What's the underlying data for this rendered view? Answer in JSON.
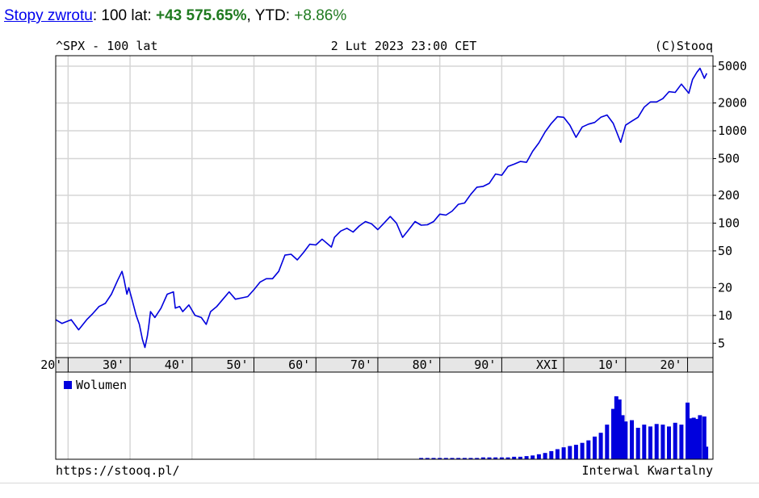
{
  "headline": {
    "link_label": "Stopy zwrotu",
    "after_link": ": 100 lat: ",
    "gain": "+43 575.65%",
    "ytd_label": ", YTD: ",
    "ytd_value": "+8.86%"
  },
  "chart": {
    "title_left": "^SPX - 100 lat",
    "title_center": "2 Lut 2023 23:00 CET",
    "title_right": "(C)Stooq",
    "footer_left": "https://stooq.pl/",
    "footer_right": "Interwal Kwartalny",
    "line_color": "#0000dd",
    "volume_color": "#0000dd",
    "grid_color": "#d6d6d6"
  },
  "chart_data": [
    {
      "type": "line",
      "x_scale": "time (years)",
      "y_scale": "log",
      "ylim": [
        3.5,
        6500
      ],
      "xlim": [
        1918.0,
        2024.1
      ],
      "x_tick_labels": [
        "20'",
        "30'",
        "40'",
        "50'",
        "60'",
        "70'",
        "80'",
        "90'",
        "XXI",
        "10'",
        "20'"
      ],
      "x_tick_years": [
        1920,
        1930,
        1940,
        1950,
        1960,
        1970,
        1980,
        1990,
        2000,
        2010,
        2020
      ],
      "y_tick_labels": [
        "5000",
        "2000",
        "1000",
        "500",
        "200",
        "100",
        "50",
        "20",
        "10",
        "5"
      ],
      "y_tick_values": [
        5000,
        2000,
        1000,
        500,
        200,
        100,
        50,
        20,
        10,
        5
      ],
      "grid": true,
      "series": [
        {
          "x": [
            1918.0,
            1919.0,
            1920.5,
            1921.7,
            1923.0,
            1924.0,
            1925.0,
            1926.0,
            1927.0,
            1928.0,
            1928.7,
            1929.0,
            1929.5,
            1929.8,
            1930.3,
            1931.0,
            1931.5,
            1932.0,
            1932.4,
            1932.8,
            1933.0,
            1933.3,
            1934.0,
            1935.0,
            1936.0,
            1937.0,
            1937.3,
            1938.0,
            1938.5,
            1939.5,
            1940.5,
            1941.5,
            1942.3,
            1943.0,
            1944.0,
            1945.0,
            1946.0,
            1947.0,
            1948.0,
            1949.0,
            1950.0,
            1951.0,
            1952.0,
            1953.0,
            1954.0,
            1955.0,
            1956.0,
            1957.0,
            1958.0,
            1959.0,
            1960.0,
            1961.0,
            1962.5,
            1963.0,
            1964.0,
            1965.0,
            1966.0,
            1967.0,
            1968.0,
            1969.0,
            1970.0,
            1971.0,
            1972.0,
            1973.0,
            1974.0,
            1975.0,
            1976.0,
            1977.0,
            1978.0,
            1979.0,
            1980.0,
            1981.0,
            1982.0,
            1983.0,
            1984.0,
            1985.0,
            1986.0,
            1987.0,
            1988.0,
            1989.0,
            1990.0,
            1991.0,
            1992.0,
            1993.0,
            1994.0,
            1995.0,
            1996.0,
            1997.0,
            1998.0,
            1999.0,
            2000.0,
            2001.0,
            2002.0,
            2003.0,
            2004.0,
            2005.0,
            2006.0,
            2007.0,
            2008.0,
            2008.8,
            2009.2,
            2010.0,
            2011.0,
            2012.0,
            2013.0,
            2014.0,
            2015.0,
            2016.0,
            2017.0,
            2018.0,
            2019.0,
            2020.2,
            2020.8,
            2021.5,
            2022.0,
            2022.7,
            2023.1
          ],
          "y": [
            9.0,
            8.2,
            9.0,
            7.0,
            9.0,
            10.5,
            12.5,
            13.5,
            17.0,
            24.0,
            30.0,
            25.0,
            17.0,
            20.0,
            15.0,
            10.0,
            8.0,
            5.5,
            4.5,
            6.0,
            7.5,
            11.0,
            9.5,
            12.0,
            17.0,
            18.0,
            12.0,
            12.5,
            11.0,
            13.0,
            10.0,
            9.5,
            8.0,
            11.0,
            12.5,
            15.0,
            18.0,
            15.0,
            15.5,
            16.0,
            19.0,
            23.0,
            25.0,
            25.0,
            30.0,
            45.0,
            46.0,
            40.0,
            48.0,
            59.0,
            58.0,
            67.0,
            55.0,
            70.0,
            82.0,
            88.0,
            80.0,
            93.0,
            104.0,
            98.0,
            85.0,
            100.0,
            118.0,
            100.0,
            70.0,
            85.0,
            104.0,
            95.0,
            96.0,
            104.0,
            125.0,
            122.0,
            135.0,
            160.0,
            165.0,
            205.0,
            245.0,
            250.0,
            270.0,
            340.0,
            330.0,
            410.0,
            435.0,
            465.0,
            455.0,
            600.0,
            740.0,
            970.0,
            1200.0,
            1420.0,
            1400.0,
            1150.0,
            850.0,
            1100.0,
            1180.0,
            1230.0,
            1400.0,
            1480.0,
            1200.0,
            880.0,
            750.0,
            1150.0,
            1270.0,
            1400.0,
            1800.0,
            2050.0,
            2050.0,
            2230.0,
            2650.0,
            2600.0,
            3200.0,
            2550.0,
            3600.0,
            4300.0,
            4750.0,
            3700.0,
            4180.0
          ]
        }
      ]
    },
    {
      "type": "bar",
      "title": "Wolumen",
      "x_scale": "time (quarters)",
      "xlim": [
        1918.0,
        2024.1
      ],
      "relative_scale": true,
      "series": [
        {
          "name": "Wolumen",
          "x": [
            1977.0,
            1978.0,
            1979.0,
            1980.0,
            1981.0,
            1982.0,
            1983.0,
            1984.0,
            1985.0,
            1986.0,
            1987.0,
            1988.0,
            1989.0,
            1990.0,
            1991.0,
            1992.0,
            1993.0,
            1994.0,
            1995.0,
            1996.0,
            1997.0,
            1998.0,
            1999.0,
            2000.0,
            2001.0,
            2002.0,
            2003.0,
            2004.0,
            2005.0,
            2006.0,
            2007.0,
            2008.0,
            2008.5,
            2009.0,
            2009.5,
            2010.0,
            2011.0,
            2012.0,
            2013.0,
            2014.0,
            2015.0,
            2016.0,
            2017.0,
            2018.0,
            2019.0,
            2020.0,
            2020.5,
            2021.0,
            2021.5,
            2022.0,
            2022.7,
            2023.0
          ],
          "y": [
            0.02,
            0.02,
            0.02,
            0.02,
            0.02,
            0.02,
            0.02,
            0.02,
            0.02,
            0.02,
            0.03,
            0.03,
            0.03,
            0.03,
            0.03,
            0.04,
            0.04,
            0.05,
            0.06,
            0.08,
            0.1,
            0.13,
            0.16,
            0.19,
            0.21,
            0.23,
            0.26,
            0.3,
            0.36,
            0.42,
            0.55,
            0.8,
            1.0,
            0.95,
            0.7,
            0.6,
            0.62,
            0.5,
            0.55,
            0.52,
            0.56,
            0.55,
            0.52,
            0.58,
            0.55,
            0.9,
            0.65,
            0.66,
            0.64,
            0.7,
            0.68,
            0.2
          ]
        }
      ]
    }
  ]
}
